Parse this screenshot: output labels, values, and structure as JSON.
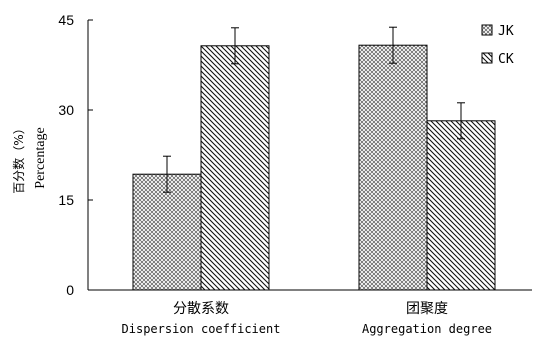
{
  "chart_data": {
    "type": "bar",
    "categories": [
      {
        "cn": "分散系数",
        "en": "Dispersion coefficient"
      },
      {
        "cn": "团聚度",
        "en": "Aggregation degree"
      }
    ],
    "series": [
      {
        "name": "JK",
        "values": [
          19.3,
          40.8
        ],
        "errors": [
          3.0,
          3.0
        ],
        "pattern": "crosshatch"
      },
      {
        "name": "CK",
        "values": [
          40.7,
          28.2
        ],
        "errors": [
          3.0,
          3.0
        ],
        "pattern": "diagonal"
      }
    ],
    "ylabel_cn": "百分数（%）",
    "ylabel_en": "Percentage",
    "yticks": [
      0,
      15,
      30,
      45
    ],
    "ylim": [
      0,
      45
    ],
    "grid": false,
    "legend_position": "top-right"
  }
}
